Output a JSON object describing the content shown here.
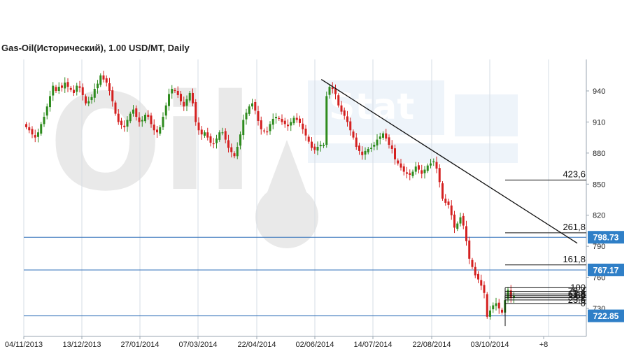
{
  "title": "Gas-Oil(Исторический), 1.00 USD/MT, Daily",
  "watermark": {
    "brand": "Oil",
    "sub": "Stat"
  },
  "colors": {
    "up": "#2e8b1e",
    "down": "#d42020",
    "hline": "#2f6fb8",
    "badge": "#2f7fc7",
    "grid": "#d6dde4"
  },
  "chart_data": {
    "type": "candlestick",
    "x_labels": [
      "04/11/2013",
      "13/12/2013",
      "27/01/2014",
      "07/03/2014",
      "22/04/2014",
      "02/06/2014",
      "14/07/2014",
      "22/08/2014",
      "03/10/2014",
      "+8"
    ],
    "y_ticks": [
      940,
      910,
      880,
      850,
      820,
      790,
      760,
      730
    ],
    "ylim": [
      712,
      965
    ],
    "closes": [
      905,
      902,
      898,
      895,
      900,
      908,
      915,
      925,
      935,
      945,
      940,
      944,
      943,
      948,
      944,
      941,
      938,
      945,
      943,
      936,
      928,
      930,
      934,
      942,
      947,
      955,
      951,
      948,
      940,
      930,
      918,
      910,
      907,
      905,
      912,
      918,
      922,
      915,
      910,
      912,
      917,
      915,
      908,
      902,
      900,
      905,
      915,
      926,
      937,
      942,
      940,
      936,
      930,
      925,
      932,
      938,
      928,
      910,
      902,
      898,
      900,
      895,
      890,
      889,
      894,
      900,
      900,
      893,
      885,
      881,
      877,
      886,
      898,
      912,
      919,
      925,
      928,
      921,
      911,
      903,
      901,
      900,
      908,
      913,
      915,
      913,
      910,
      908,
      906,
      910,
      914,
      912,
      909,
      903,
      897,
      891,
      885,
      883,
      886,
      888,
      888,
      935,
      944,
      942,
      937,
      926,
      920,
      916,
      910,
      902,
      895,
      886,
      882,
      878,
      882,
      884,
      885,
      888,
      893,
      896,
      899,
      894,
      888,
      884,
      874,
      870,
      866,
      862,
      860,
      859,
      862,
      867,
      864,
      860,
      864,
      868,
      870,
      872,
      865,
      852,
      836,
      832,
      830,
      820,
      808,
      812,
      818,
      810,
      795,
      778,
      770,
      762,
      758,
      752,
      745,
      722,
      728,
      733,
      735,
      730,
      726,
      738,
      748,
      740,
      742
    ],
    "upper_fib": {
      "levels": [
        "100",
        "76,4",
        "61,8",
        "50",
        "38,2",
        "23,6",
        "0"
      ],
      "values": [
        750,
        746.5,
        744,
        742.2,
        740.4,
        738.2,
        734.8
      ]
    },
    "extensions": [
      {
        "label": "423,6",
        "value": 854
      },
      {
        "label": "261,8",
        "value": 803
      },
      {
        "label": "161,8",
        "value": 772
      }
    ],
    "trendline": {
      "from_bar": 101,
      "from_value": 941,
      "to_bar": 180,
      "to_value": 793
    },
    "horizontal_levels": [
      "798.73",
      "767.17",
      "722.85"
    ]
  }
}
